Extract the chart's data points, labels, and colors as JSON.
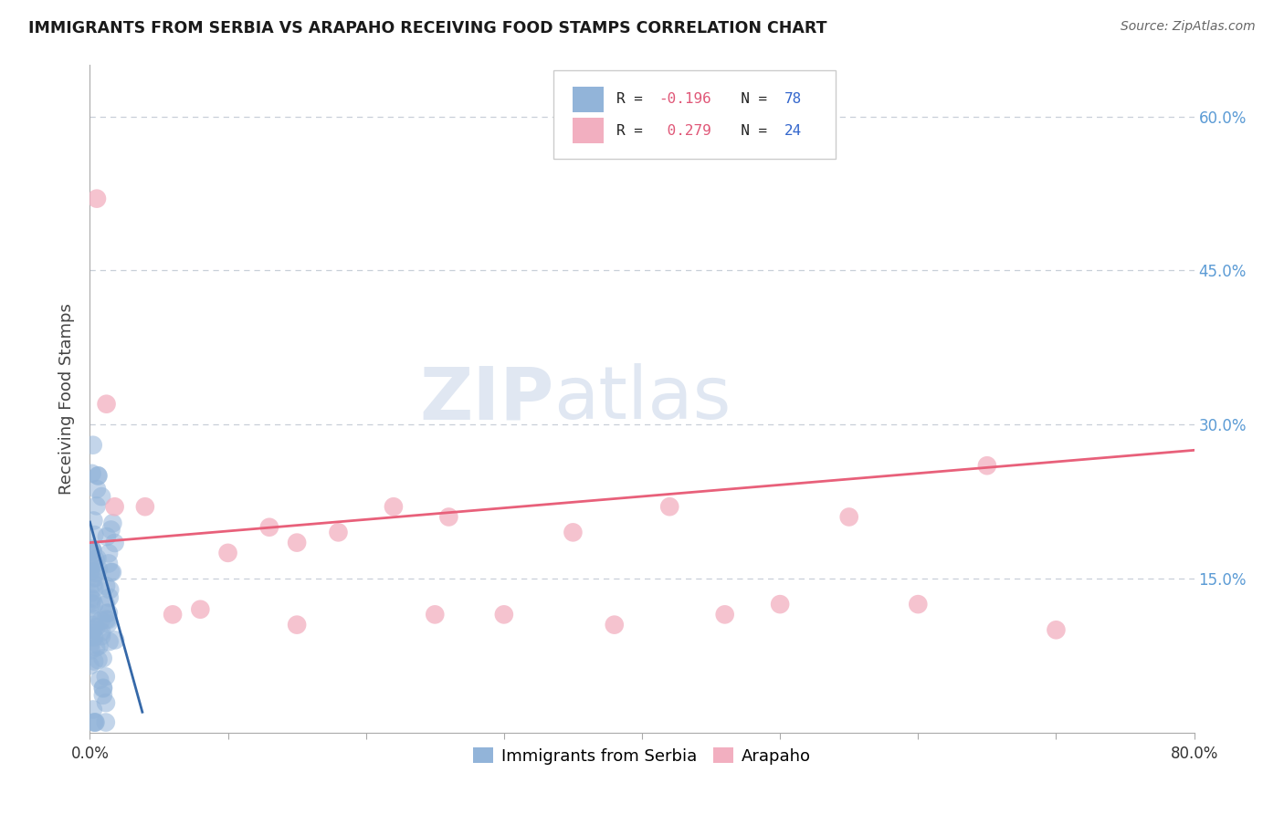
{
  "title": "IMMIGRANTS FROM SERBIA VS ARAPAHO RECEIVING FOOD STAMPS CORRELATION CHART",
  "source": "Source: ZipAtlas.com",
  "ylabel": "Receiving Food Stamps",
  "legend_bottom": [
    "Immigrants from Serbia",
    "Arapaho"
  ],
  "watermark_zip": "ZIP",
  "watermark_atlas": "atlas",
  "xlim": [
    0.0,
    0.8
  ],
  "ylim": [
    0.0,
    0.65
  ],
  "yticks": [
    0.0,
    0.15,
    0.3,
    0.45,
    0.6
  ],
  "xticks": [
    0.0,
    0.1,
    0.2,
    0.3,
    0.4,
    0.5,
    0.6,
    0.7,
    0.8
  ],
  "blue_color": "#92b4d9",
  "pink_color": "#f2afc0",
  "blue_line_color": "#3568a8",
  "pink_line_color": "#e8607a",
  "bg_color": "#ffffff",
  "grid_color": "#c8cfd8",
  "title_color": "#1a1a1a",
  "source_color": "#666666",
  "right_tick_color": "#5b9bd5",
  "legend_R_color": "#e05878",
  "legend_N_color": "#3366cc",
  "serbia_r": -0.196,
  "serbia_n": 78,
  "arapaho_r": 0.279,
  "arapaho_n": 24,
  "pink_line_x0": 0.0,
  "pink_line_x1": 0.8,
  "pink_line_y0": 0.185,
  "pink_line_y1": 0.275,
  "blue_line_x0": 0.0,
  "blue_line_x1": 0.038,
  "blue_line_y0": 0.205,
  "blue_line_y1": 0.02
}
